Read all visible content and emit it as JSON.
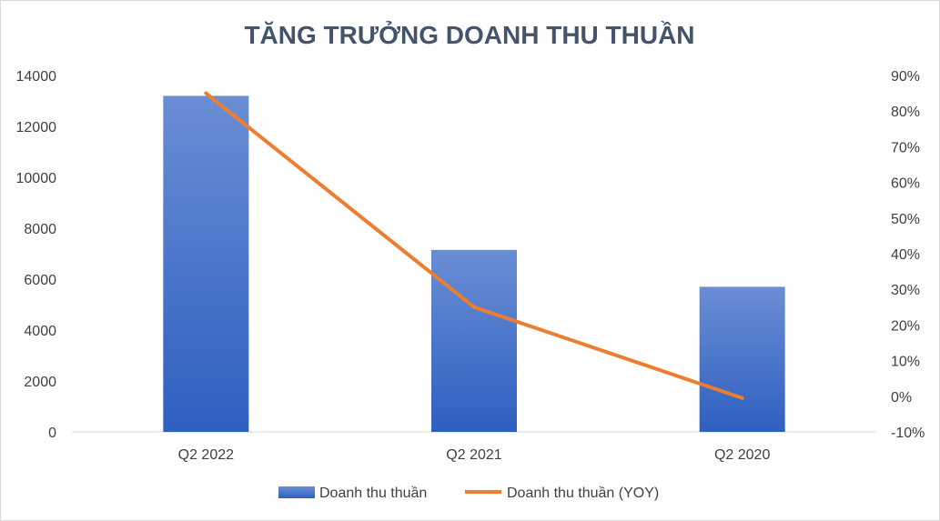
{
  "chart_data": {
    "type": "bar+line",
    "title": "TĂNG TRƯỞNG DOANH THU THUẦN",
    "categories": [
      "Q2 2022",
      "Q2 2021",
      "Q2 2020"
    ],
    "series": [
      {
        "name": "Doanh thu thuần",
        "type": "bar",
        "axis": "left",
        "values": [
          13200,
          7150,
          5700
        ],
        "color": "#4472c4"
      },
      {
        "name": "Doanh thu thuần (YOY)",
        "type": "line",
        "axis": "right",
        "values": [
          0.85,
          0.25,
          -0.005
        ],
        "color": "#ed7d31"
      }
    ],
    "y_left": {
      "min": 0,
      "max": 14000,
      "ticks": [
        0,
        2000,
        4000,
        6000,
        8000,
        10000,
        12000,
        14000
      ],
      "tick_labels": [
        "0",
        "2000",
        "4000",
        "6000",
        "8000",
        "10000",
        "12000",
        "14000"
      ]
    },
    "y_right": {
      "min": -0.1,
      "max": 0.9,
      "ticks": [
        -0.1,
        0,
        0.1,
        0.2,
        0.3,
        0.4,
        0.5,
        0.6,
        0.7,
        0.8,
        0.9
      ],
      "tick_labels": [
        "-10%",
        "0%",
        "10%",
        "20%",
        "30%",
        "40%",
        "50%",
        "60%",
        "70%",
        "80%",
        "90%"
      ]
    },
    "grid": false,
    "legend_position": "bottom"
  }
}
